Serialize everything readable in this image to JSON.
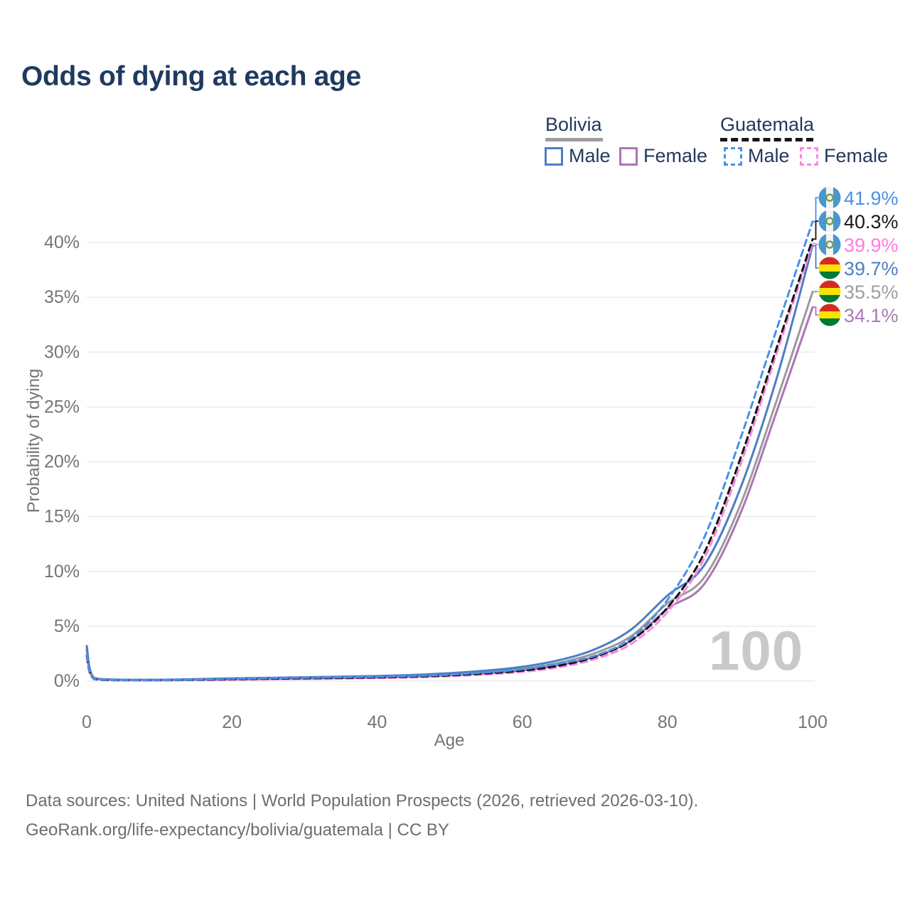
{
  "title": "Odds of dying at each age",
  "watermark": "100",
  "colors": {
    "title_text": "#1e3a5f",
    "legend_text": "#23395c",
    "axis_text": "#757575",
    "gridline": "#ebebeb",
    "watermark": "#c9c9c9",
    "footer_text": "#6e6e6e",
    "bolivia_male": "#4d7ec3",
    "bolivia_female": "#ad74b5",
    "bolivia_both": "#9b9b9b",
    "guatemala_male": "#4a90e8",
    "guatemala_female": "#ff85e3",
    "guatemala_both": "#141414",
    "guatemala_flag_blue": "#4997d0",
    "bolivia_flag_red": "#d52b1e",
    "bolivia_flag_yellow": "#f9e300",
    "bolivia_flag_green": "#007934"
  },
  "legend": {
    "groups": [
      {
        "name": "Bolivia",
        "underline_style": "solid",
        "underline_color": "#9e9e9e",
        "items": [
          {
            "label": "Male",
            "color": "#4d7ec3",
            "dashed": false
          },
          {
            "label": "Female",
            "color": "#ad74b5",
            "dashed": false
          }
        ]
      },
      {
        "name": "Guatemala",
        "underline_style": "dashed",
        "underline_color": "#161616",
        "items": [
          {
            "label": "Male",
            "color": "#4a90e8",
            "dashed": true
          },
          {
            "label": "Female",
            "color": "#ff85e3",
            "dashed": true
          }
        ]
      }
    ]
  },
  "chart_data": {
    "type": "line",
    "title": "Odds of dying at each age",
    "xlabel": "Age",
    "ylabel": "Probability of dying",
    "xlim": [
      0,
      100
    ],
    "ylim_pct": [
      0,
      43
    ],
    "grid": "horizontal",
    "x_ticks": [
      {
        "v": 0,
        "label": "0"
      },
      {
        "v": 20,
        "label": "20"
      },
      {
        "v": 40,
        "label": "40"
      },
      {
        "v": 60,
        "label": "60"
      },
      {
        "v": 80,
        "label": "80"
      },
      {
        "v": 100,
        "label": "100"
      }
    ],
    "y_ticks": [
      {
        "v": 0,
        "label": "0%"
      },
      {
        "v": 5,
        "label": "5%"
      },
      {
        "v": 10,
        "label": "10%"
      },
      {
        "v": 15,
        "label": "15%"
      },
      {
        "v": 20,
        "label": "20%"
      },
      {
        "v": 25,
        "label": "25%"
      },
      {
        "v": 30,
        "label": "30%"
      },
      {
        "v": 35,
        "label": "35%"
      },
      {
        "v": 40,
        "label": "40%"
      }
    ],
    "ages": [
      0,
      1,
      5,
      10,
      15,
      20,
      25,
      30,
      35,
      40,
      45,
      50,
      55,
      60,
      65,
      70,
      75,
      80,
      85,
      90,
      95,
      100
    ],
    "series": [
      {
        "name": "Bolivia Both sexes",
        "country": "bolivia",
        "sex": "both",
        "color": "#9b9b9b",
        "dashed": false,
        "end_label": "35.5%",
        "end_color": "#9e9e9e",
        "values_pct": [
          3.0,
          0.27,
          0.1,
          0.1,
          0.14,
          0.19,
          0.24,
          0.28,
          0.33,
          0.39,
          0.48,
          0.62,
          0.82,
          1.12,
          1.65,
          2.55,
          4.1,
          7.1,
          9.4,
          16.0,
          25.5,
          35.5
        ]
      },
      {
        "name": "Bolivia Female",
        "country": "bolivia",
        "sex": "female",
        "color": "#ad74b5",
        "dashed": false,
        "end_label": "34.1%",
        "end_color": "#a97ab8",
        "values_pct": [
          2.8,
          0.25,
          0.09,
          0.08,
          0.11,
          0.14,
          0.18,
          0.21,
          0.26,
          0.31,
          0.4,
          0.52,
          0.7,
          0.97,
          1.45,
          2.25,
          3.7,
          6.6,
          8.8,
          15.2,
          24.5,
          34.1
        ]
      },
      {
        "name": "Bolivia Male",
        "country": "bolivia",
        "sex": "male",
        "color": "#4d7ec3",
        "dashed": false,
        "end_label": "39.7%",
        "end_color": "#4d7ec3",
        "values_pct": [
          3.2,
          0.3,
          0.12,
          0.12,
          0.18,
          0.25,
          0.3,
          0.35,
          0.4,
          0.46,
          0.56,
          0.72,
          0.95,
          1.3,
          1.9,
          2.9,
          4.7,
          7.8,
          10.5,
          17.5,
          27.5,
          39.7
        ]
      },
      {
        "name": "Guatemala Female",
        "country": "guatemala",
        "sex": "female",
        "color": "#ff85e3",
        "dashed": true,
        "end_label": "39.9%",
        "end_color": "#ff7ce1",
        "values_pct": [
          2.2,
          0.19,
          0.07,
          0.07,
          0.09,
          0.12,
          0.16,
          0.19,
          0.23,
          0.28,
          0.34,
          0.45,
          0.61,
          0.84,
          1.25,
          2.0,
          3.4,
          6.3,
          11.1,
          19.6,
          29.8,
          39.9
        ]
      },
      {
        "name": "Guatemala Both sexes",
        "country": "guatemala",
        "sex": "both",
        "color": "#141414",
        "dashed": true,
        "end_label": "40.3%",
        "end_color": "#1a1a1a",
        "values_pct": [
          2.3,
          0.2,
          0.08,
          0.08,
          0.11,
          0.16,
          0.21,
          0.25,
          0.29,
          0.33,
          0.4,
          0.52,
          0.7,
          0.95,
          1.4,
          2.2,
          3.7,
          6.7,
          11.6,
          20.2,
          30.3,
          40.3
        ]
      },
      {
        "name": "Guatemala Male",
        "country": "guatemala",
        "sex": "male",
        "color": "#4a90e8",
        "dashed": true,
        "end_label": "41.9%",
        "end_color": "#4a90e8",
        "values_pct": [
          2.4,
          0.22,
          0.09,
          0.09,
          0.13,
          0.2,
          0.26,
          0.31,
          0.35,
          0.39,
          0.46,
          0.59,
          0.8,
          1.08,
          1.6,
          2.3,
          3.9,
          7.4,
          13.0,
          22.0,
          32.0,
          41.9
        ]
      }
    ]
  },
  "footer": {
    "line1": "Data sources: United Nations | World Population Prospects (2026, retrieved 2026-03-10).",
    "line2": "GeoRank.org/life-expectancy/bolivia/guatemala | CC BY"
  }
}
